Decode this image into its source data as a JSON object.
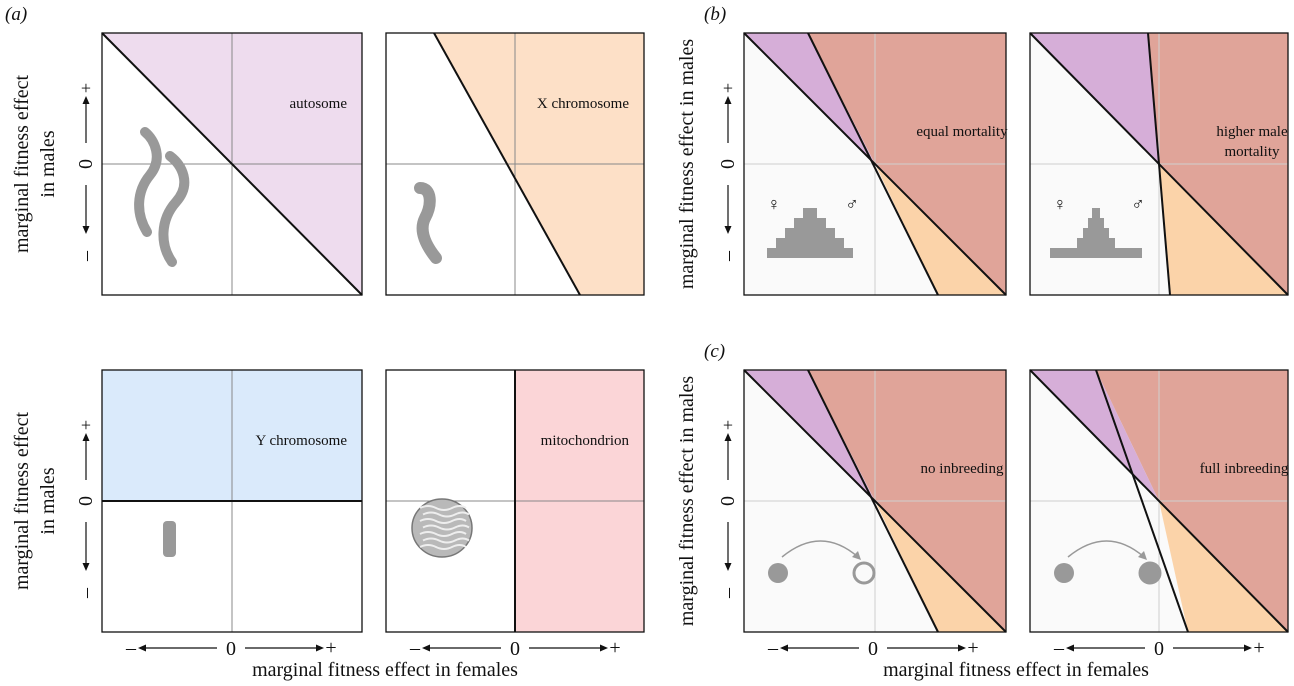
{
  "panel_labels": {
    "a": "(a)",
    "b": "(b)",
    "c": "(c)"
  },
  "axis": {
    "y_label_line1": "marginal fitness effect",
    "y_label_line2": "in males",
    "y_label_single": "marginal fitness effect in males",
    "x_label": "marginal fitness effect in females",
    "plus": "+",
    "minus": "–",
    "zero": "0"
  },
  "panels_a": [
    {
      "id": "autosome",
      "label": "autosome",
      "fill": "#eedcee",
      "icon": "autosome-chromosome-icon"
    },
    {
      "id": "x-chromosome",
      "label": "X chromosome",
      "fill": "#fde0c7",
      "icon": "x-chromosome-icon"
    },
    {
      "id": "y-chromosome",
      "label": "Y chromosome",
      "fill": "#daeafb",
      "icon": "y-chromosome-icon"
    },
    {
      "id": "mitochondrion",
      "label": "mitochondrion",
      "fill": "#fbd5d7",
      "icon": "mitochondrion-icon"
    }
  ],
  "panels_bc": [
    {
      "id": "equal-mortality",
      "label_lines": [
        "equal mortality"
      ],
      "icon": "population-pyramid-equal-icon"
    },
    {
      "id": "higher-male-mortality",
      "label_lines": [
        "higher male",
        "mortality"
      ],
      "icon": "population-pyramid-male-skew-icon"
    },
    {
      "id": "no-inbreeding",
      "label_lines": [
        "no inbreeding"
      ],
      "icon": "outbred-mating-icon"
    },
    {
      "id": "full-inbreeding",
      "label_lines": [
        "full inbreeding"
      ],
      "icon": "inbred-mating-icon"
    }
  ],
  "sex_symbols": {
    "female": "♀",
    "male": "♂"
  },
  "colors": {
    "region_purple": "#d6aed8",
    "region_red": "#e0a499",
    "region_orange": "#fbd3a9",
    "background_grey": "#fafafa",
    "icon_grey": "#999999",
    "boundary": "#111111"
  }
}
